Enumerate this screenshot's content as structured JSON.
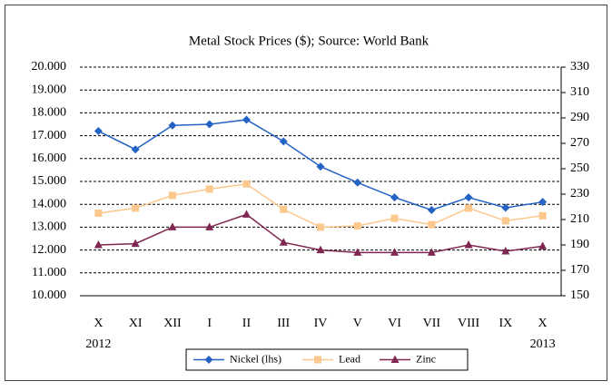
{
  "chart_data": {
    "type": "line",
    "title": "Metal Stock Prices ($); Source: World Bank",
    "categories": [
      "X",
      "XI",
      "XII",
      "I",
      "II",
      "III",
      "IV",
      "V",
      "VI",
      "VII",
      "VIII",
      "IX",
      "X"
    ],
    "category_years": [
      "2012",
      null,
      null,
      null,
      null,
      null,
      null,
      null,
      null,
      null,
      null,
      null,
      "2013"
    ],
    "ylim": [
      10000,
      20000
    ],
    "yticks": [
      {
        "value": 10000,
        "label": "10.000"
      },
      {
        "value": 11000,
        "label": "11.000"
      },
      {
        "value": 12000,
        "label": "12.000"
      },
      {
        "value": 13000,
        "label": "13.000"
      },
      {
        "value": 14000,
        "label": "14.000"
      },
      {
        "value": 15000,
        "label": "15.000"
      },
      {
        "value": 16000,
        "label": "16.000"
      },
      {
        "value": 17000,
        "label": "17.000"
      },
      {
        "value": 18000,
        "label": "18.000"
      },
      {
        "value": 19000,
        "label": "19.000"
      },
      {
        "value": 20000,
        "label": "20.000"
      }
    ],
    "y2lim": [
      150,
      330
    ],
    "y2ticks": [
      150,
      170,
      190,
      210,
      230,
      250,
      270,
      290,
      310,
      330
    ],
    "grid": true,
    "legend": "bottom",
    "series": [
      {
        "name": "Nickel (lhs)",
        "color": "#2462c4",
        "marker": "diamond",
        "values": [
          17200,
          16400,
          17450,
          17500,
          17700,
          16750,
          15650,
          14950,
          14300,
          13750,
          14300,
          13850,
          14100
        ]
      },
      {
        "name": "Lead",
        "color": "#fcc88e",
        "marker": "square",
        "axis": "y2",
        "values": [
          215,
          219,
          229,
          234,
          238,
          218,
          204,
          205,
          211,
          206,
          219,
          209,
          213
        ]
      },
      {
        "name": "Zinc",
        "color": "#7f2750",
        "marker": "triangle",
        "axis": "y2",
        "values": [
          190,
          191,
          204,
          204,
          214,
          192,
          186,
          184,
          184,
          184,
          190,
          185,
          189
        ]
      }
    ]
  }
}
